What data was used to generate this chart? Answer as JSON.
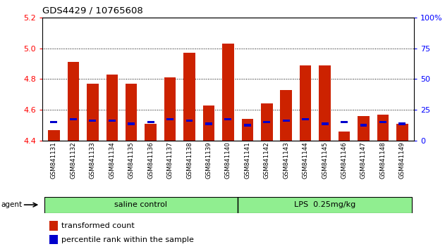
{
  "title": "GDS4429 / 10765608",
  "samples": [
    "GSM841131",
    "GSM841132",
    "GSM841133",
    "GSM841134",
    "GSM841135",
    "GSM841136",
    "GSM841137",
    "GSM841138",
    "GSM841139",
    "GSM841140",
    "GSM841141",
    "GSM841142",
    "GSM841143",
    "GSM841144",
    "GSM841145",
    "GSM841146",
    "GSM841147",
    "GSM841148",
    "GSM841149"
  ],
  "red_values": [
    4.47,
    4.91,
    4.77,
    4.83,
    4.77,
    4.51,
    4.81,
    4.97,
    4.63,
    5.03,
    4.54,
    4.64,
    4.73,
    4.89,
    4.89,
    4.46,
    4.56,
    4.57,
    4.51
  ],
  "blue_values": [
    4.52,
    4.54,
    4.53,
    4.53,
    4.51,
    4.52,
    4.54,
    4.53,
    4.51,
    4.54,
    4.5,
    4.52,
    4.53,
    4.54,
    4.51,
    4.52,
    4.5,
    4.52,
    4.51
  ],
  "groups": [
    {
      "label": "saline control",
      "start": 0,
      "end": 9,
      "color": "#90EE90"
    },
    {
      "label": "LPS  0.25mg/kg",
      "start": 10,
      "end": 18,
      "color": "#90EE90"
    }
  ],
  "ymin": 4.4,
  "ymax": 5.2,
  "yticks": [
    4.4,
    4.6,
    4.8,
    5.0,
    5.2
  ],
  "y2min": 0,
  "y2max": 100,
  "y2ticks": [
    0,
    25,
    50,
    75,
    100
  ],
  "red_color": "#CC2200",
  "blue_color": "#0000CC",
  "agent_label": "agent",
  "legend_red": "transformed count",
  "legend_blue": "percentile rank within the sample",
  "bar_width": 0.6,
  "base": 4.4,
  "grid_lines": [
    4.6,
    4.8,
    5.0
  ]
}
